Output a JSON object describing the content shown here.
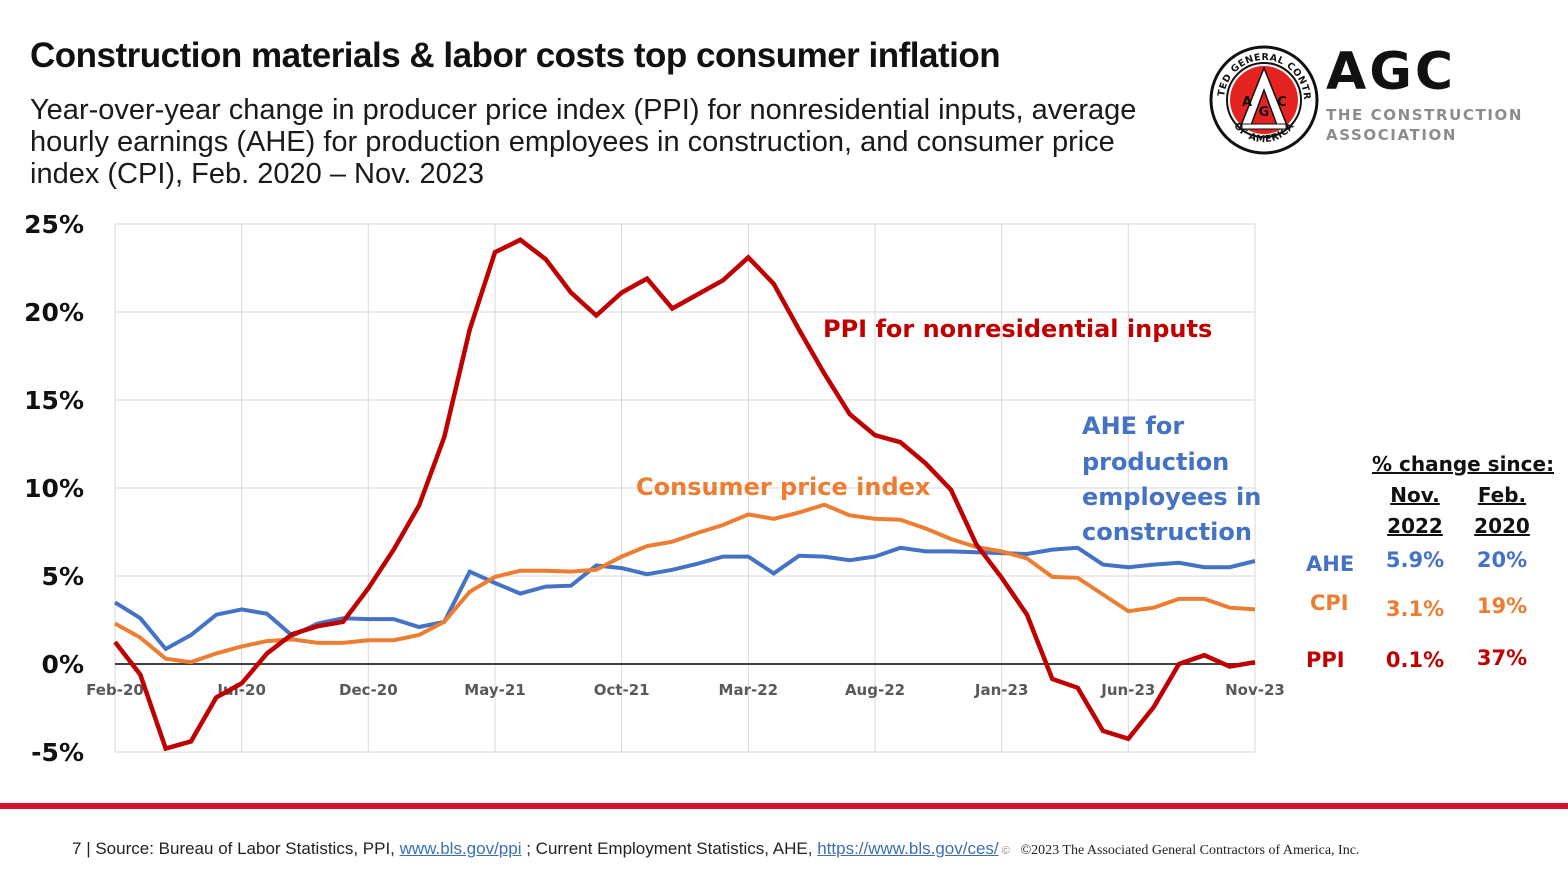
{
  "header": {
    "title": "Construction materials & labor costs top consumer inflation",
    "subtitle": "Year-over-year change in producer price index (PPI)  for nonresidential inputs, average hourly earnings (AHE) for production employees in construction, and consumer price index (CPI), Feb. 2020 – Nov. 2023"
  },
  "logo": {
    "seal_top_text": "ASSOCIATED GENERAL CONTRACTORS",
    "seal_bottom_text": "OF AMERICA",
    "seal_letters": [
      "A",
      "G",
      "C"
    ],
    "wordmark": "AGC",
    "tagline_line1": "THE CONSTRUCTION",
    "tagline_line2": "ASSOCIATION",
    "seal_color": "#e52421"
  },
  "colors": {
    "ppi": "#c00000",
    "ahe": "#4472c4",
    "cpi": "#ed7d31",
    "footer_bar": "#d4102f",
    "link": "#3b6fb6"
  },
  "chart_data": {
    "type": "line",
    "title": "Construction materials & labor costs top consumer inflation",
    "xlabel": "",
    "ylabel": "",
    "ylim": [
      -5,
      25
    ],
    "y_ticks": [
      -5,
      0,
      5,
      10,
      15,
      20,
      25
    ],
    "y_tick_labels": [
      "-5%",
      "0%",
      "5%",
      "10%",
      "15%",
      "20%",
      "25%"
    ],
    "grid": true,
    "x": [
      "Feb-20",
      "Mar-20",
      "Apr-20",
      "May-20",
      "Jun-20",
      "Jul-20",
      "Aug-20",
      "Sep-20",
      "Oct-20",
      "Nov-20",
      "Dec-20",
      "Jan-21",
      "Feb-21",
      "Mar-21",
      "Apr-21",
      "May-21",
      "Jun-21",
      "Jul-21",
      "Aug-21",
      "Sep-21",
      "Oct-21",
      "Nov-21",
      "Dec-21",
      "Jan-22",
      "Feb-22",
      "Mar-22",
      "Apr-22",
      "May-22",
      "Jun-22",
      "Jul-22",
      "Aug-22",
      "Sep-22",
      "Oct-22",
      "Nov-22",
      "Dec-22",
      "Jan-23",
      "Feb-23",
      "Mar-23",
      "Apr-23",
      "May-23",
      "Jun-23",
      "Jul-23",
      "Aug-23",
      "Sep-23",
      "Oct-23",
      "Nov-23"
    ],
    "x_tick_labels": [
      "Feb-20",
      "Jul-20",
      "Dec-20",
      "May-21",
      "Oct-21",
      "Mar-22",
      "Aug-22",
      "Jan-23",
      "Jun-23",
      "Nov-23"
    ],
    "series": [
      {
        "name": "PPI for nonresidential inputs",
        "key": "ppi",
        "values": [
          1.25,
          -0.6,
          -4.8,
          -4.4,
          -1.9,
          -1.1,
          0.6,
          1.7,
          2.15,
          2.4,
          4.3,
          6.5,
          9.0,
          12.9,
          19.0,
          23.4,
          24.1,
          23.0,
          21.1,
          19.8,
          21.1,
          21.9,
          20.2,
          21.0,
          21.8,
          23.1,
          21.6,
          19.0,
          16.5,
          14.2,
          13.0,
          12.6,
          11.4,
          9.9,
          6.8,
          4.9,
          2.8,
          -0.85,
          -1.35,
          -3.8,
          -4.25,
          -2.45,
          0.0,
          0.5,
          -0.15,
          0.1
        ]
      },
      {
        "name": "AHE for production employees in construction",
        "key": "ahe",
        "values": [
          3.5,
          2.6,
          0.85,
          1.65,
          2.8,
          3.1,
          2.85,
          1.6,
          2.3,
          2.6,
          2.55,
          2.55,
          2.1,
          2.4,
          5.25,
          4.6,
          4.0,
          4.4,
          4.45,
          5.6,
          5.45,
          5.1,
          5.35,
          5.7,
          6.1,
          6.1,
          5.15,
          6.15,
          6.1,
          5.9,
          6.1,
          6.6,
          6.4,
          6.4,
          6.35,
          6.3,
          6.25,
          6.5,
          6.6,
          5.65,
          5.5,
          5.65,
          5.75,
          5.5,
          5.5,
          5.85
        ]
      },
      {
        "name": "Consumer price index",
        "key": "cpi",
        "values": [
          2.3,
          1.5,
          0.3,
          0.1,
          0.6,
          1.0,
          1.3,
          1.4,
          1.2,
          1.2,
          1.35,
          1.35,
          1.65,
          2.4,
          4.1,
          4.95,
          5.3,
          5.3,
          5.25,
          5.35,
          6.1,
          6.7,
          6.95,
          7.45,
          7.9,
          8.5,
          8.25,
          8.6,
          9.05,
          8.45,
          8.25,
          8.2,
          7.7,
          7.1,
          6.65,
          6.4,
          6.0,
          4.95,
          4.9,
          3.95,
          3.0,
          3.2,
          3.7,
          3.7,
          3.2,
          3.1
        ]
      }
    ],
    "annotations": [
      {
        "text": "PPI for nonresidential inputs",
        "series": "ppi"
      },
      {
        "text": "Consumer price index",
        "series": "cpi"
      },
      {
        "lines": [
          "AHE for",
          "production",
          "employees in",
          "construction"
        ],
        "series": "ahe"
      }
    ],
    "legend": "none (direct labels)"
  },
  "summary_table": {
    "header": "% change since:",
    "col1": [
      "Nov.",
      "2022"
    ],
    "col2": [
      "Feb.",
      "2020"
    ],
    "rows": [
      {
        "name": "AHE",
        "nov2022": "5.9%",
        "feb2020": "20%",
        "key": "ahe"
      },
      {
        "name": "CPI",
        "nov2022": "3.1%",
        "feb2020": "19%",
        "key": "cpi"
      },
      {
        "name": "PPI",
        "nov2022": "0.1%",
        "feb2020": "37%",
        "key": "ppi"
      }
    ]
  },
  "footer": {
    "page_number": "7",
    "source_prefix": "| Source: Bureau of Labor Statistics, PPI, ",
    "link1": "www.bls.gov/ppi",
    "mid_text": " ; Current Employment Statistics, AHE, ",
    "link2": "https://www.bls.gov/ces/",
    "trail": " ©",
    "copyright": "©2023 The Associated General Contractors of America,  Inc."
  }
}
